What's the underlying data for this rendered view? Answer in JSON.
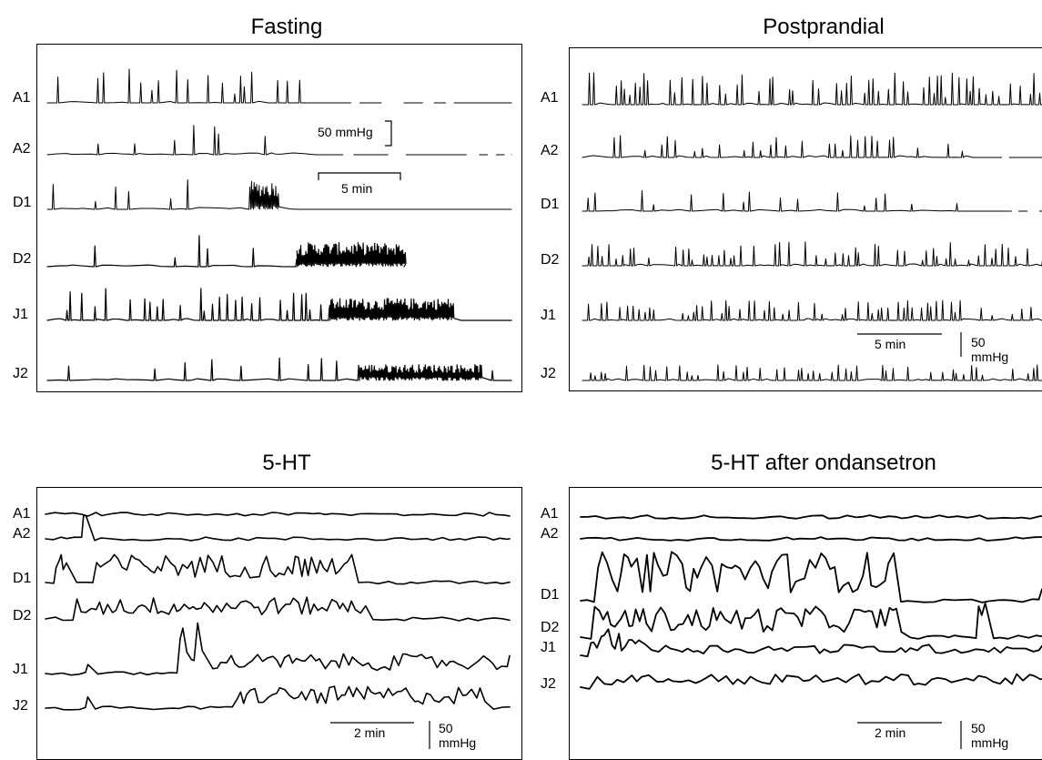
{
  "chart_data": [
    {
      "type": "line",
      "title": "Fasting",
      "channels": [
        "A1",
        "A2",
        "D1",
        "D2",
        "J1",
        "J2"
      ],
      "scale_bars": {
        "amplitude": "50 mmHg",
        "time": "5 min"
      }
    },
    {
      "type": "line",
      "title": "Postprandial",
      "channels": [
        "A1",
        "A2",
        "D1",
        "D2",
        "J1",
        "J2"
      ],
      "scale_bars": {
        "amplitude": "50 mmHg",
        "time": "5 min"
      }
    },
    {
      "type": "line",
      "title": "5-HT",
      "channels": [
        "A1",
        "A2",
        "D1",
        "D2",
        "J1",
        "J2"
      ],
      "scale_bars": {
        "amplitude": "50 mmHg",
        "time": "2 min"
      }
    },
    {
      "type": "line",
      "title": "5-HT after ondansetron",
      "channels": [
        "A1",
        "A2",
        "D1",
        "J1",
        "D2",
        "J2"
      ],
      "scale_bars": {
        "amplitude": "50 mmHg",
        "time": "2 min"
      }
    }
  ],
  "panels": {
    "fasting": {
      "title": "Fasting",
      "amp_label": "50 mmHg",
      "time_label": "5 min"
    },
    "postprandial": {
      "title": "Postprandial",
      "amp_label_1": "50",
      "amp_label_2": "mmHg",
      "time_label": "5 min"
    },
    "serotonin": {
      "title": "5-HT",
      "amp_label_1": "50",
      "amp_label_2": "mmHg",
      "time_label": "2 min"
    },
    "ondansetron": {
      "title": "5-HT after ondansetron",
      "amp_label_1": "50",
      "amp_label_2": "mmHg",
      "time_label": "2 min"
    }
  },
  "channel_labels": {
    "A1": "A1",
    "A2": "A2",
    "D1": "D1",
    "D2": "D2",
    "J1": "J1",
    "J2": "J2"
  }
}
